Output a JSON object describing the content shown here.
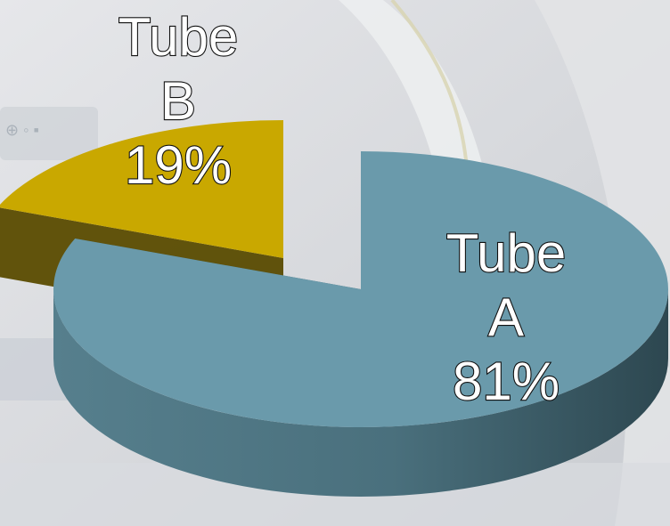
{
  "chart_data": {
    "type": "pie",
    "style": "3d-exploded",
    "slices": [
      {
        "label_lines": [
          "Tube",
          "A",
          "81%"
        ],
        "value": 81,
        "color": "#6a9aab",
        "side_color": "#3f6470"
      },
      {
        "label_lines": [
          "Tube",
          "B",
          "19%"
        ],
        "value": 19,
        "color": "#c9a800",
        "side_color": "#5a4b00"
      }
    ]
  }
}
